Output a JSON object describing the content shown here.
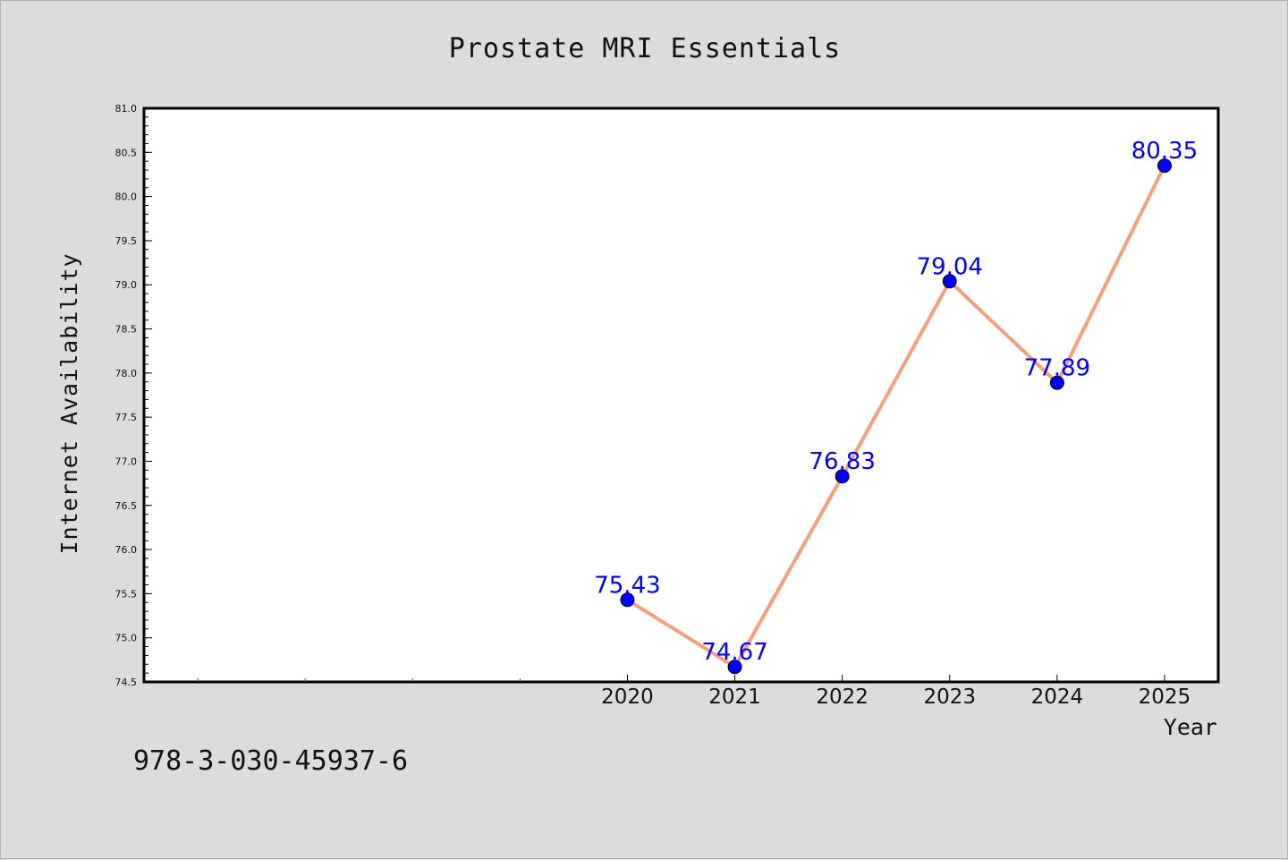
{
  "chart_data": {
    "type": "line",
    "title": "Prostate MRI Essentials",
    "xlabel": "Year",
    "ylabel": "Internet Availability",
    "x": [
      2020,
      2021,
      2022,
      2023,
      2024,
      2025
    ],
    "series": [
      {
        "values": [
          75.43,
          74.67,
          76.83,
          79.04,
          77.89,
          80.35
        ]
      }
    ],
    "data_labels": [
      "75.43",
      "74.67",
      "76.83",
      "79.04",
      "77.89",
      "80.35"
    ],
    "x_tick_labels": [
      "2020",
      "2021",
      "2022",
      "2023",
      "2024",
      "2025"
    ],
    "xlim": [
      2015.5,
      2025.5
    ],
    "ylim": [
      74.5,
      81.0
    ],
    "y_ticks": [
      "74.5",
      "75.0",
      "75.5",
      "76.0",
      "76.5",
      "77.0",
      "77.5",
      "78.0",
      "78.5",
      "79.0",
      "79.5",
      "80.0",
      "80.5",
      "81.0"
    ],
    "grid": false,
    "legend": "none",
    "colors": {
      "line": "#f4a07e",
      "marker": "#0000ff",
      "label": "#0000ff",
      "background": "#dcdcdc",
      "plot_background": "#ffffff"
    }
  },
  "footer": {
    "isbn": "978-3-030-45937-6"
  }
}
